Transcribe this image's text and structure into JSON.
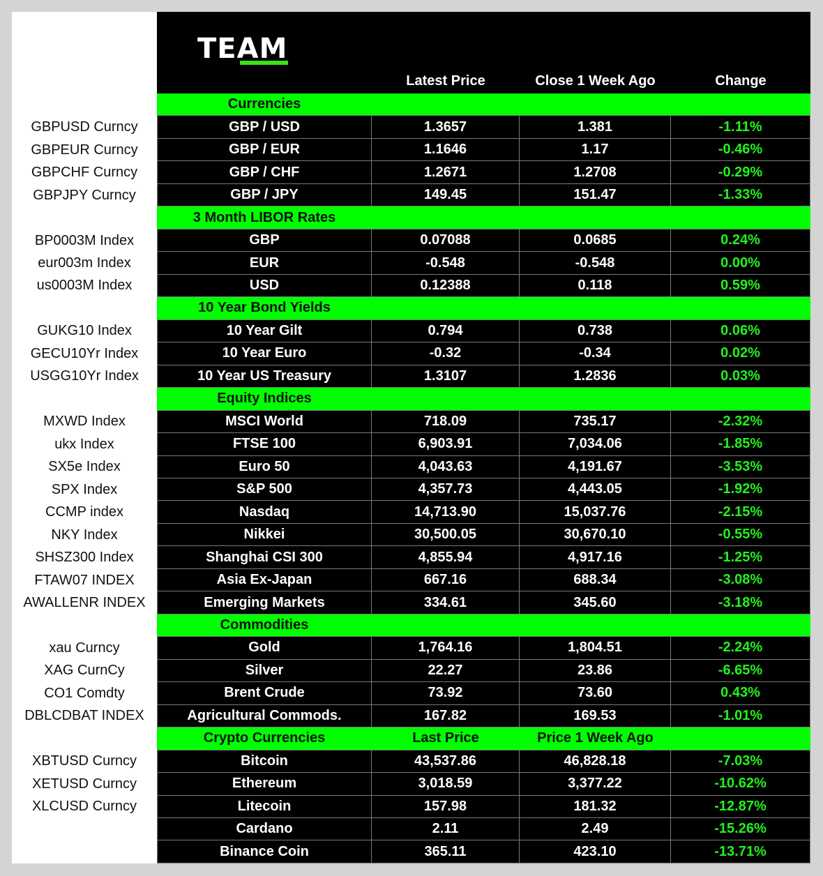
{
  "logo": "TEAM",
  "header": {
    "latest": "Latest Price",
    "week": "Close 1 Week Ago",
    "change": "Change"
  },
  "colors": {
    "section_bg": "#00ff00",
    "change_text": "#22f21e",
    "table_bg": "#000000"
  },
  "sections": [
    {
      "title": "Currencies",
      "rows": [
        [
          "GBPUSD Curncy",
          "GBP / USD",
          "1.3657",
          "1.381",
          "-1.11%"
        ],
        [
          "GBPEUR Curncy",
          "GBP / EUR",
          "1.1646",
          "1.17",
          "-0.46%"
        ],
        [
          "GBPCHF Curncy",
          "GBP / CHF",
          "1.2671",
          "1.2708",
          "-0.29%"
        ],
        [
          "GBPJPY Curncy",
          "GBP / JPY",
          "149.45",
          "151.47",
          "-1.33%"
        ]
      ]
    },
    {
      "title": "3 Month LIBOR Rates",
      "rows": [
        [
          "BP0003M Index",
          "GBP",
          "0.07088",
          "0.0685",
          "0.24%"
        ],
        [
          "eur003m Index",
          "EUR",
          "-0.548",
          "-0.548",
          "0.00%"
        ],
        [
          "us0003M Index",
          "USD",
          "0.12388",
          "0.118",
          "0.59%"
        ]
      ]
    },
    {
      "title": "10 Year Bond Yields",
      "rows": [
        [
          "GUKG10 Index",
          "10 Year Gilt",
          "0.794",
          "0.738",
          "0.06%"
        ],
        [
          "GECU10Yr Index",
          "10 Year Euro",
          "-0.32",
          "-0.34",
          "0.02%"
        ],
        [
          "USGG10Yr Index",
          "10 Year US Treasury",
          "1.3107",
          "1.2836",
          "0.03%"
        ]
      ]
    },
    {
      "title": "Equity Indices",
      "rows": [
        [
          "MXWD Index",
          "MSCI World",
          "718.09",
          "735.17",
          "-2.32%"
        ],
        [
          "ukx Index",
          "FTSE 100",
          "6,903.91",
          "7,034.06",
          "-1.85%"
        ],
        [
          "SX5e Index",
          "Euro 50",
          "4,043.63",
          "4,191.67",
          "-3.53%"
        ],
        [
          "SPX Index",
          "S&P 500",
          "4,357.73",
          "4,443.05",
          "-1.92%"
        ],
        [
          "CCMP index",
          "Nasdaq",
          "14,713.90",
          "15,037.76",
          "-2.15%"
        ],
        [
          "NKY Index",
          "Nikkei",
          "30,500.05",
          "30,670.10",
          "-0.55%"
        ],
        [
          "SHSZ300 Index",
          "Shanghai CSI 300",
          "4,855.94",
          "4,917.16",
          "-1.25%"
        ],
        [
          "FTAW07 INDEX",
          "Asia Ex-Japan",
          "667.16",
          "688.34",
          "-3.08%"
        ],
        [
          "AWALLENR INDEX",
          "Emerging Markets",
          "334.61",
          "345.60",
          "-3.18%"
        ]
      ]
    },
    {
      "title": "Commodities",
      "rows": [
        [
          "xau Curncy",
          "Gold",
          "1,764.16",
          "1,804.51",
          "-2.24%"
        ],
        [
          "XAG CurnCy",
          "Silver",
          "22.27",
          "23.86",
          "-6.65%"
        ],
        [
          "CO1 Comdty",
          "Brent Crude",
          "73.92",
          "73.60",
          "0.43%"
        ],
        [
          "DBLCDBAT INDEX",
          "Agricultural Commods.",
          "167.82",
          "169.53",
          "-1.01%"
        ]
      ]
    },
    {
      "title": "Crypto Currencies",
      "col2": "Last Price",
      "col3": "Price 1 Week Ago",
      "rows": [
        [
          "XBTUSD Curncy",
          "Bitcoin",
          "43,537.86",
          "46,828.18",
          "-7.03%"
        ],
        [
          "XETUSD Curncy",
          "Ethereum",
          "3,018.59",
          "3,377.22",
          "-10.62%"
        ],
        [
          "XLCUSD Curncy",
          "Litecoin",
          "157.98",
          "181.32",
          "-12.87%"
        ],
        [
          "",
          "Cardano",
          "2.11",
          "2.49",
          "-15.26%"
        ],
        [
          "",
          "Binance Coin",
          "365.11",
          "423.10",
          "-13.71%"
        ]
      ]
    }
  ]
}
